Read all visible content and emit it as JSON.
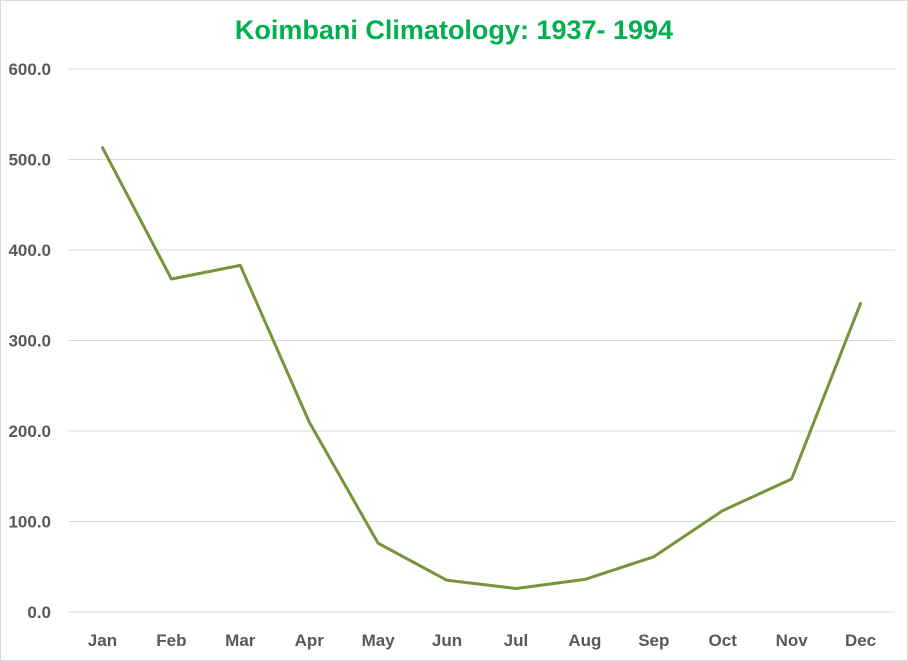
{
  "chart_data": {
    "type": "line",
    "title": "Koimbani Climatology: 1937- 1994",
    "xlabel": "",
    "ylabel": "",
    "categories": [
      "Jan",
      "Feb",
      "Mar",
      "Apr",
      "May",
      "Jun",
      "Jul",
      "Aug",
      "Sep",
      "Oct",
      "Nov",
      "Dec"
    ],
    "series": [
      {
        "values": [
          513,
          368,
          383,
          210,
          76,
          35,
          26,
          36,
          61,
          112,
          147,
          341
        ],
        "color": "#77933c"
      }
    ],
    "ylim": [
      0,
      600
    ],
    "yticks": [
      "0.0",
      "100.0",
      "200.0",
      "300.0",
      "400.0",
      "500.0",
      "600.0"
    ],
    "ytick_values": [
      0,
      100,
      200,
      300,
      400,
      500,
      600
    ],
    "grid": "horizontal",
    "legend": "none"
  }
}
